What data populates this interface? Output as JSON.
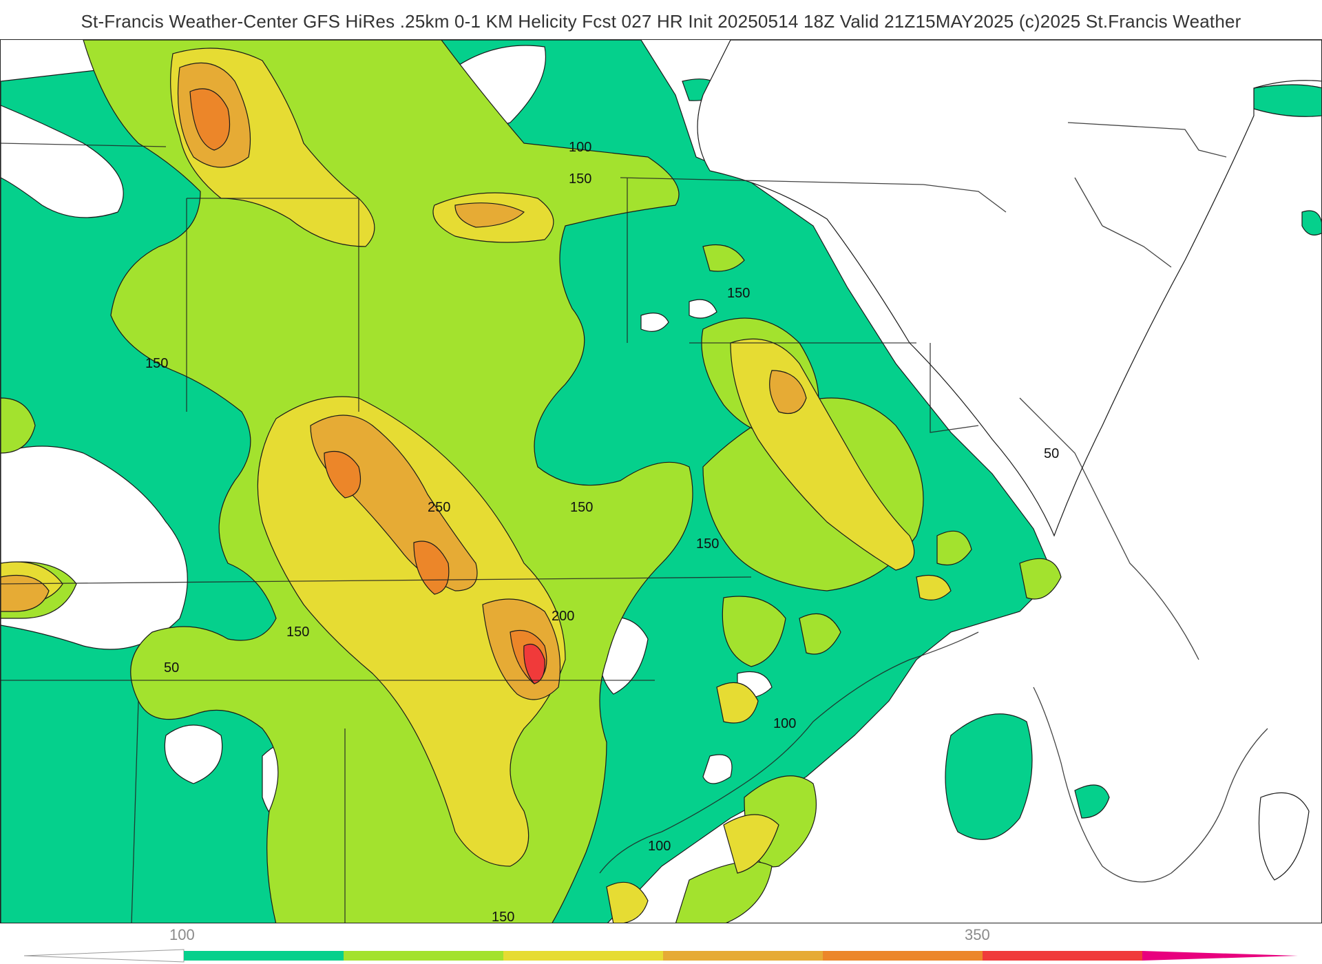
{
  "header": {
    "title": "St-Francis Weather-Center GFS HiRes .25km 0-1 KM Helicity Fcst 027 HR Init 20250514 18Z  Valid 21Z15MAY2025    (c)2025 St.Francis Weather"
  },
  "map": {
    "contour_labels": [
      "100",
      "150",
      "150",
      "150",
      "250",
      "150",
      "150",
      "150",
      "200",
      "50",
      "100",
      "100",
      "150",
      "50"
    ],
    "fill_colors": {
      "below_100": "#ffffff",
      "band_100_150": "#05d08c",
      "band_150_200": "#a3e22e",
      "band_200_250": "#e6dc33",
      "band_250_300": "#e6ab35",
      "band_300_350": "#ec8629",
      "band_350_plus": "#f03a3a"
    }
  },
  "legend": {
    "tick_low": "100",
    "tick_high": "350",
    "colors": [
      "#ffffff",
      "#05d08c",
      "#a3e22e",
      "#e6dc33",
      "#e6ab35",
      "#ec8629",
      "#f03a3a",
      "#e8007e"
    ]
  }
}
